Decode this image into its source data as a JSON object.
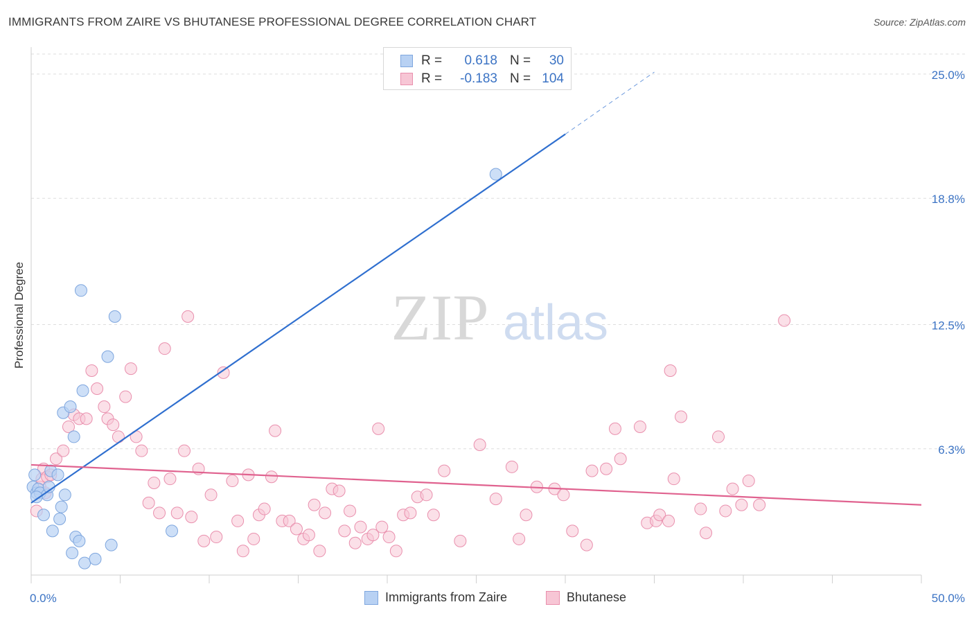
{
  "title": "IMMIGRANTS FROM ZAIRE VS BHUTANESE PROFESSIONAL DEGREE CORRELATION CHART",
  "source": "Source: ZipAtlas.com",
  "watermark": {
    "zip": "ZIP",
    "atlas": "atlas"
  },
  "legend": {
    "rows": [
      {
        "r_label": "R =",
        "r_value": "0.618",
        "n_label": "N =",
        "n_value": "30"
      },
      {
        "r_label": "R =",
        "r_value": "-0.183",
        "n_label": "N =",
        "n_value": "104"
      }
    ]
  },
  "bottom_legend": {
    "series1": "Immigrants from Zaire",
    "series2": "Bhutanese"
  },
  "colors": {
    "blue_fill": "#b8d1f3",
    "blue_stroke": "#7ea6de",
    "blue_line": "#2f6fcf",
    "pink_fill": "#f7c6d5",
    "pink_stroke": "#e98fad",
    "pink_line": "#e0628f",
    "tick_label": "#3b73c4",
    "grid": "#dddddd"
  },
  "chart_data": {
    "type": "scatter",
    "title": "IMMIGRANTS FROM ZAIRE VS BHUTANESE PROFESSIONAL DEGREE CORRELATION CHART",
    "xlabel": "",
    "ylabel": "Professional Degree",
    "xlim": [
      0,
      50
    ],
    "ylim": [
      0,
      26
    ],
    "x_tick_labels": [
      "0.0%",
      "50.0%"
    ],
    "y_ticks": [
      6.3,
      12.5,
      18.8,
      25.0
    ],
    "y_tick_labels": [
      "6.3%",
      "12.5%",
      "18.8%",
      "25.0%"
    ],
    "grid": true,
    "legend_placement": "top-center",
    "series": [
      {
        "name": "Immigrants from Zaire",
        "R": 0.618,
        "N": 30,
        "trend": {
          "x0": 0.0,
          "y0": 3.6,
          "x1": 30.0,
          "y1": 22.0,
          "dashed_to_x": 35.0,
          "dashed_to_y": 25.1
        },
        "points": [
          [
            0.1,
            4.4
          ],
          [
            0.2,
            5.0
          ],
          [
            0.3,
            4.1
          ],
          [
            0.4,
            4.3
          ],
          [
            0.5,
            4.1
          ],
          [
            0.7,
            3.0
          ],
          [
            0.9,
            4.0
          ],
          [
            1.0,
            4.4
          ],
          [
            1.1,
            5.2
          ],
          [
            1.2,
            2.2
          ],
          [
            1.5,
            5.0
          ],
          [
            1.6,
            2.8
          ],
          [
            1.7,
            3.4
          ],
          [
            1.8,
            8.1
          ],
          [
            1.9,
            4.0
          ],
          [
            2.2,
            8.4
          ],
          [
            2.3,
            1.1
          ],
          [
            2.4,
            6.9
          ],
          [
            2.5,
            1.9
          ],
          [
            2.7,
            1.7
          ],
          [
            2.8,
            14.2
          ],
          [
            2.9,
            9.2
          ],
          [
            3.0,
            0.6
          ],
          [
            3.6,
            0.8
          ],
          [
            4.3,
            10.9
          ],
          [
            4.5,
            1.5
          ],
          [
            4.7,
            12.9
          ],
          [
            7.9,
            2.2
          ],
          [
            26.1,
            20.0
          ],
          [
            0.3,
            3.9
          ]
        ]
      },
      {
        "name": "Bhutanese",
        "R": -0.183,
        "N": 104,
        "trend": {
          "x0": 0.0,
          "y0": 5.5,
          "x1": 50.0,
          "y1": 3.5
        },
        "points": [
          [
            0.3,
            3.2
          ],
          [
            0.5,
            4.4
          ],
          [
            0.6,
            4.8
          ],
          [
            0.7,
            5.3
          ],
          [
            0.8,
            4.1
          ],
          [
            0.9,
            4.9
          ],
          [
            1.1,
            5.0
          ],
          [
            1.4,
            5.8
          ],
          [
            1.8,
            6.2
          ],
          [
            2.1,
            7.4
          ],
          [
            2.4,
            8.0
          ],
          [
            2.7,
            7.8
          ],
          [
            3.1,
            7.8
          ],
          [
            3.4,
            10.2
          ],
          [
            3.7,
            9.3
          ],
          [
            4.1,
            8.4
          ],
          [
            4.3,
            7.8
          ],
          [
            4.6,
            7.5
          ],
          [
            4.9,
            6.9
          ],
          [
            5.3,
            8.9
          ],
          [
            5.6,
            10.3
          ],
          [
            5.9,
            6.9
          ],
          [
            6.2,
            6.2
          ],
          [
            6.6,
            3.6
          ],
          [
            6.9,
            4.6
          ],
          [
            7.2,
            3.1
          ],
          [
            7.5,
            11.3
          ],
          [
            7.8,
            4.8
          ],
          [
            8.2,
            3.1
          ],
          [
            8.6,
            6.2
          ],
          [
            8.8,
            12.9
          ],
          [
            9.0,
            2.9
          ],
          [
            9.4,
            5.3
          ],
          [
            9.7,
            1.7
          ],
          [
            10.1,
            4.0
          ],
          [
            10.4,
            1.9
          ],
          [
            10.8,
            10.1
          ],
          [
            11.3,
            4.7
          ],
          [
            11.6,
            2.7
          ],
          [
            11.9,
            1.2
          ],
          [
            12.2,
            5.0
          ],
          [
            12.5,
            1.8
          ],
          [
            12.8,
            3.0
          ],
          [
            13.1,
            3.3
          ],
          [
            13.5,
            4.9
          ],
          [
            13.7,
            7.2
          ],
          [
            14.1,
            2.7
          ],
          [
            14.5,
            2.7
          ],
          [
            14.9,
            2.3
          ],
          [
            15.3,
            1.8
          ],
          [
            15.6,
            2.0
          ],
          [
            15.9,
            3.5
          ],
          [
            16.2,
            1.2
          ],
          [
            16.5,
            3.1
          ],
          [
            16.9,
            4.3
          ],
          [
            17.3,
            4.2
          ],
          [
            17.6,
            2.2
          ],
          [
            17.9,
            3.2
          ],
          [
            18.2,
            1.6
          ],
          [
            18.5,
            2.4
          ],
          [
            18.9,
            1.8
          ],
          [
            19.2,
            2.0
          ],
          [
            19.5,
            7.3
          ],
          [
            19.7,
            2.4
          ],
          [
            20.1,
            1.9
          ],
          [
            20.5,
            1.2
          ],
          [
            20.9,
            3.0
          ],
          [
            21.3,
            3.1
          ],
          [
            21.7,
            3.9
          ],
          [
            22.2,
            4.0
          ],
          [
            22.6,
            3.0
          ],
          [
            23.2,
            5.2
          ],
          [
            24.1,
            1.7
          ],
          [
            25.2,
            6.5
          ],
          [
            26.1,
            3.8
          ],
          [
            27.0,
            5.4
          ],
          [
            27.4,
            1.8
          ],
          [
            27.8,
            3.0
          ],
          [
            28.4,
            4.4
          ],
          [
            29.4,
            4.3
          ],
          [
            29.9,
            4.0
          ],
          [
            30.4,
            2.2
          ],
          [
            31.2,
            1.5
          ],
          [
            31.5,
            5.2
          ],
          [
            32.3,
            5.3
          ],
          [
            32.8,
            7.3
          ],
          [
            33.1,
            5.8
          ],
          [
            34.2,
            7.4
          ],
          [
            34.6,
            2.6
          ],
          [
            35.1,
            2.7
          ],
          [
            35.3,
            3.0
          ],
          [
            35.8,
            2.7
          ],
          [
            35.9,
            10.2
          ],
          [
            36.1,
            4.8
          ],
          [
            36.5,
            7.9
          ],
          [
            37.6,
            3.3
          ],
          [
            37.9,
            2.1
          ],
          [
            38.6,
            6.9
          ],
          [
            39.0,
            3.2
          ],
          [
            39.4,
            4.3
          ],
          [
            39.9,
            3.5
          ],
          [
            40.3,
            4.7
          ],
          [
            40.9,
            3.5
          ],
          [
            42.3,
            12.7
          ]
        ]
      }
    ]
  }
}
